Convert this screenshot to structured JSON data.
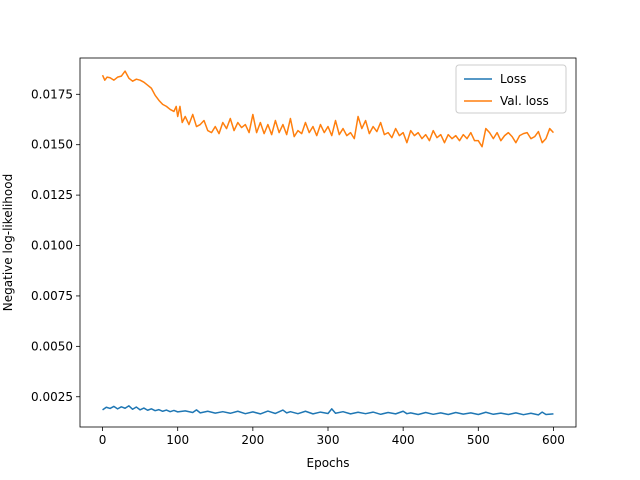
{
  "chart_data": {
    "type": "line",
    "title": "",
    "xlabel": "Epochs",
    "ylabel": "Negative log-likelihood",
    "xlim": [
      -30,
      630
    ],
    "ylim": [
      0.001,
      0.0193
    ],
    "xticks": [
      0,
      100,
      200,
      300,
      400,
      500,
      600
    ],
    "xtick_labels": [
      "0",
      "100",
      "200",
      "300",
      "400",
      "500",
      "600"
    ],
    "yticks": [
      0.0025,
      0.005,
      0.0075,
      0.01,
      0.0125,
      0.015,
      0.0175
    ],
    "ytick_labels": [
      "0.0025",
      "0.0050",
      "0.0075",
      "0.0100",
      "0.0125",
      "0.0150",
      "0.0175"
    ],
    "grid": false,
    "legend": "top-right",
    "series": [
      {
        "name": "Loss",
        "color": "#1f77b4",
        "x": [
          0,
          5,
          10,
          15,
          20,
          25,
          30,
          35,
          40,
          45,
          50,
          55,
          60,
          65,
          70,
          75,
          80,
          85,
          90,
          95,
          100,
          110,
          120,
          125,
          130,
          140,
          150,
          160,
          170,
          180,
          190,
          200,
          210,
          220,
          230,
          240,
          245,
          250,
          260,
          270,
          280,
          290,
          300,
          305,
          310,
          320,
          330,
          340,
          350,
          360,
          370,
          380,
          390,
          400,
          405,
          410,
          420,
          430,
          440,
          450,
          460,
          470,
          480,
          490,
          500,
          510,
          520,
          530,
          540,
          550,
          560,
          570,
          580,
          585,
          590,
          600
        ],
        "values": [
          0.00185,
          0.00198,
          0.00192,
          0.00202,
          0.0019,
          0.002,
          0.00193,
          0.00205,
          0.00188,
          0.00199,
          0.00185,
          0.00194,
          0.00183,
          0.0019,
          0.00181,
          0.00186,
          0.00178,
          0.00184,
          0.00176,
          0.00182,
          0.00175,
          0.0018,
          0.00172,
          0.00185,
          0.0017,
          0.00178,
          0.00169,
          0.00176,
          0.00168,
          0.00178,
          0.00166,
          0.00175,
          0.00165,
          0.00179,
          0.00167,
          0.00184,
          0.0017,
          0.00176,
          0.00166,
          0.00178,
          0.00165,
          0.00174,
          0.00167,
          0.0019,
          0.00168,
          0.00176,
          0.00165,
          0.00173,
          0.00166,
          0.00174,
          0.00163,
          0.00172,
          0.00165,
          0.00178,
          0.00166,
          0.0017,
          0.00162,
          0.00172,
          0.00163,
          0.0017,
          0.00162,
          0.00172,
          0.00164,
          0.0017,
          0.00162,
          0.00173,
          0.00163,
          0.00169,
          0.00162,
          0.0017,
          0.00161,
          0.00168,
          0.0016,
          0.00174,
          0.00162,
          0.00165
        ]
      },
      {
        "name": "Val. loss",
        "color": "#ff7f0e",
        "x": [
          0,
          3,
          6,
          10,
          15,
          20,
          25,
          30,
          35,
          40,
          45,
          50,
          55,
          60,
          65,
          70,
          75,
          80,
          85,
          90,
          95,
          98,
          100,
          103,
          106,
          110,
          115,
          120,
          125,
          130,
          135,
          140,
          145,
          150,
          155,
          160,
          165,
          170,
          175,
          180,
          185,
          190,
          195,
          200,
          205,
          210,
          215,
          220,
          225,
          230,
          235,
          240,
          245,
          250,
          255,
          260,
          265,
          270,
          275,
          280,
          285,
          290,
          295,
          300,
          305,
          310,
          315,
          320,
          325,
          330,
          335,
          340,
          345,
          350,
          355,
          360,
          365,
          370,
          375,
          380,
          385,
          390,
          395,
          400,
          405,
          410,
          415,
          420,
          425,
          430,
          435,
          440,
          445,
          450,
          455,
          460,
          465,
          470,
          475,
          480,
          485,
          490,
          495,
          500,
          505,
          510,
          515,
          520,
          525,
          530,
          535,
          540,
          545,
          550,
          555,
          560,
          565,
          570,
          575,
          580,
          585,
          590,
          595,
          600
        ],
        "values": [
          0.01845,
          0.0182,
          0.01835,
          0.01832,
          0.0182,
          0.01835,
          0.0184,
          0.01865,
          0.0183,
          0.01815,
          0.01825,
          0.0182,
          0.0181,
          0.01795,
          0.0178,
          0.01745,
          0.0172,
          0.017,
          0.0169,
          0.01675,
          0.01665,
          0.0169,
          0.0164,
          0.0169,
          0.0161,
          0.0164,
          0.016,
          0.0165,
          0.0159,
          0.016,
          0.0162,
          0.0157,
          0.0156,
          0.0159,
          0.01555,
          0.0161,
          0.0158,
          0.0163,
          0.0157,
          0.0161,
          0.01585,
          0.016,
          0.0156,
          0.0165,
          0.0156,
          0.0161,
          0.01555,
          0.016,
          0.0155,
          0.0162,
          0.0156,
          0.016,
          0.0155,
          0.0163,
          0.0154,
          0.0157,
          0.01555,
          0.0161,
          0.0156,
          0.0159,
          0.01545,
          0.016,
          0.0156,
          0.0159,
          0.01545,
          0.0162,
          0.0155,
          0.0158,
          0.01545,
          0.0156,
          0.0153,
          0.0164,
          0.0158,
          0.0162,
          0.01555,
          0.0159,
          0.01565,
          0.0161,
          0.0155,
          0.0156,
          0.01535,
          0.0158,
          0.01545,
          0.0156,
          0.0151,
          0.0157,
          0.01545,
          0.0156,
          0.0153,
          0.0155,
          0.0152,
          0.0157,
          0.01535,
          0.0155,
          0.0151,
          0.0155,
          0.0153,
          0.01545,
          0.0152,
          0.0155,
          0.0153,
          0.0156,
          0.0152,
          0.0152,
          0.0149,
          0.0158,
          0.0156,
          0.0153,
          0.0156,
          0.0152,
          0.01545,
          0.0156,
          0.0154,
          0.0151,
          0.01545,
          0.01555,
          0.0156,
          0.0153,
          0.0154,
          0.01565,
          0.0151,
          0.0153,
          0.0158,
          0.0156
        ]
      }
    ]
  }
}
